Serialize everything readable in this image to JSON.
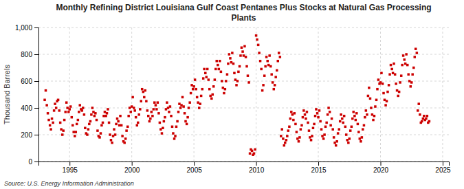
{
  "chart_data": {
    "type": "scatter",
    "title": "Monthly Refining District Louisiana Gulf Coast Pentanes Plus Stocks at Natural Gas Processing\nPlants",
    "ylabel": "Thousand Barrels",
    "source": "Source: U.S. Energy Information Administration",
    "color": "#CC0000",
    "marker": "square",
    "grid": true,
    "xlim": [
      1992.5,
      2025.5
    ],
    "xticks": [
      1995,
      2000,
      2005,
      2010,
      2015,
      2020,
      2025
    ],
    "ylim": [
      0,
      1000
    ],
    "yticks": [
      0,
      200,
      400,
      600,
      800,
      {
        "value": 1000,
        "label": "1,000"
      }
    ],
    "x": [
      1993.0,
      1993.08,
      1993.17,
      1993.25,
      1993.33,
      1993.42,
      1993.5,
      1993.58,
      1993.67,
      1993.75,
      1993.83,
      1993.92,
      1994.0,
      1994.08,
      1994.17,
      1994.25,
      1994.33,
      1994.42,
      1994.5,
      1994.58,
      1994.67,
      1994.75,
      1994.83,
      1994.92,
      1995.0,
      1995.08,
      1995.17,
      1995.25,
      1995.33,
      1995.42,
      1995.5,
      1995.58,
      1995.67,
      1995.75,
      1995.83,
      1995.92,
      1996.0,
      1996.08,
      1996.17,
      1996.25,
      1996.33,
      1996.42,
      1996.5,
      1996.58,
      1996.67,
      1996.75,
      1996.83,
      1996.92,
      1997.0,
      1997.08,
      1997.17,
      1997.25,
      1997.33,
      1997.42,
      1997.5,
      1997.58,
      1997.67,
      1997.75,
      1997.83,
      1997.92,
      1998.0,
      1998.08,
      1998.17,
      1998.25,
      1998.33,
      1998.42,
      1998.5,
      1998.58,
      1998.67,
      1998.75,
      1998.83,
      1998.92,
      1999.0,
      1999.08,
      1999.17,
      1999.25,
      1999.33,
      1999.42,
      1999.5,
      1999.58,
      1999.67,
      1999.75,
      1999.83,
      1999.92,
      2000.0,
      2000.08,
      2000.17,
      2000.25,
      2000.33,
      2000.42,
      2000.5,
      2000.58,
      2000.67,
      2000.75,
      2000.83,
      2000.92,
      2001.0,
      2001.08,
      2001.17,
      2001.25,
      2001.33,
      2001.42,
      2001.5,
      2001.58,
      2001.67,
      2001.75,
      2001.83,
      2001.92,
      2002.0,
      2002.08,
      2002.17,
      2002.25,
      2002.33,
      2002.42,
      2002.5,
      2002.58,
      2002.67,
      2002.75,
      2002.83,
      2002.92,
      2003.0,
      2003.08,
      2003.17,
      2003.25,
      2003.33,
      2003.42,
      2003.5,
      2003.58,
      2003.67,
      2003.75,
      2003.83,
      2003.92,
      2004.0,
      2004.08,
      2004.17,
      2004.25,
      2004.33,
      2004.42,
      2004.5,
      2004.58,
      2004.67,
      2004.75,
      2004.83,
      2004.92,
      2005.0,
      2005.08,
      2005.17,
      2005.25,
      2005.33,
      2005.42,
      2005.5,
      2005.58,
      2005.67,
      2005.75,
      2005.83,
      2005.92,
      2006.0,
      2006.08,
      2006.17,
      2006.25,
      2006.33,
      2006.42,
      2006.5,
      2006.58,
      2006.67,
      2006.75,
      2006.83,
      2006.92,
      2007.0,
      2007.08,
      2007.17,
      2007.25,
      2007.33,
      2007.42,
      2007.5,
      2007.58,
      2007.67,
      2007.75,
      2007.83,
      2007.92,
      2008.0,
      2008.08,
      2008.17,
      2008.25,
      2008.33,
      2008.42,
      2008.5,
      2008.58,
      2008.67,
      2008.75,
      2008.83,
      2008.92,
      2009.0,
      2009.08,
      2009.17,
      2009.25,
      2009.33,
      2009.42,
      2009.5,
      2009.58,
      2009.67,
      2009.75,
      2009.83,
      2009.92,
      2010.0,
      2010.08,
      2010.17,
      2010.25,
      2010.33,
      2010.42,
      2010.5,
      2010.58,
      2010.67,
      2010.75,
      2010.83,
      2010.92,
      2011.0,
      2011.08,
      2011.17,
      2011.25,
      2011.33,
      2011.42,
      2011.5,
      2011.58,
      2011.67,
      2011.75,
      2011.83,
      2011.92,
      2012.0,
      2012.08,
      2012.17,
      2012.25,
      2012.33,
      2012.42,
      2012.5,
      2012.58,
      2012.67,
      2012.75,
      2012.83,
      2012.92,
      2013.0,
      2013.08,
      2013.17,
      2013.25,
      2013.33,
      2013.42,
      2013.5,
      2013.58,
      2013.67,
      2013.75,
      2013.83,
      2013.92,
      2014.0,
      2014.08,
      2014.17,
      2014.25,
      2014.33,
      2014.42,
      2014.5,
      2014.58,
      2014.67,
      2014.75,
      2014.83,
      2014.92,
      2015.0,
      2015.08,
      2015.17,
      2015.25,
      2015.33,
      2015.42,
      2015.5,
      2015.58,
      2015.67,
      2015.75,
      2015.83,
      2015.92,
      2016.0,
      2016.08,
      2016.17,
      2016.25,
      2016.33,
      2016.42,
      2016.5,
      2016.58,
      2016.67,
      2016.75,
      2016.83,
      2016.92,
      2017.0,
      2017.08,
      2017.17,
      2017.25,
      2017.33,
      2017.42,
      2017.5,
      2017.58,
      2017.67,
      2017.75,
      2017.83,
      2017.92,
      2018.0,
      2018.08,
      2018.17,
      2018.25,
      2018.33,
      2018.42,
      2018.5,
      2018.58,
      2018.67,
      2018.75,
      2018.83,
      2018.92,
      2019.0,
      2019.08,
      2019.17,
      2019.25,
      2019.33,
      2019.42,
      2019.5,
      2019.58,
      2019.67,
      2019.75,
      2019.83,
      2019.92,
      2020.0,
      2020.08,
      2020.17,
      2020.25,
      2020.33,
      2020.42,
      2020.5,
      2020.58,
      2020.67,
      2020.75,
      2020.83,
      2020.92,
      2021.0,
      2021.08,
      2021.17,
      2021.25,
      2021.33,
      2021.42,
      2021.5,
      2021.58,
      2021.67,
      2021.75,
      2021.83,
      2021.92,
      2022.0,
      2022.08,
      2022.17,
      2022.25,
      2022.33,
      2022.42,
      2022.5,
      2022.58,
      2022.67,
      2022.75,
      2022.83,
      2022.92,
      2023.0,
      2023.08,
      2023.17,
      2023.25,
      2023.33,
      2023.42,
      2023.5,
      2023.58,
      2023.67,
      2023.75,
      2023.83,
      2023.92
    ],
    "values": [
      460,
      530,
      420,
      360,
      310,
      270,
      240,
      320,
      290,
      380,
      430,
      400,
      450,
      460,
      380,
      290,
      240,
      200,
      230,
      310,
      370,
      440,
      400,
      370,
      390,
      410,
      330,
      270,
      220,
      190,
      220,
      280,
      310,
      370,
      420,
      390,
      380,
      400,
      350,
      250,
      210,
      200,
      240,
      280,
      300,
      350,
      400,
      370,
      340,
      360,
      310,
      230,
      190,
      180,
      210,
      270,
      290,
      340,
      370,
      340,
      360,
      390,
      290,
      200,
      160,
      140,
      190,
      240,
      200,
      280,
      320,
      300,
      270,
      340,
      270,
      190,
      150,
      140,
      170,
      230,
      260,
      340,
      400,
      370,
      410,
      480,
      400,
      380,
      330,
      270,
      290,
      350,
      390,
      450,
      540,
      520,
      480,
      530,
      450,
      380,
      340,
      300,
      320,
      370,
      340,
      390,
      440,
      420,
      390,
      440,
      360,
      290,
      240,
      210,
      250,
      300,
      330,
      390,
      440,
      400,
      370,
      410,
      340,
      260,
      210,
      170,
      190,
      260,
      300,
      370,
      430,
      400,
      420,
      480,
      410,
      360,
      300,
      280,
      330,
      400,
      440,
      510,
      570,
      540,
      560,
      610,
      540,
      480,
      440,
      400,
      430,
      490,
      540,
      620,
      690,
      660,
      630,
      690,
      610,
      540,
      490,
      470,
      500,
      560,
      610,
      690,
      750,
      720,
      690,
      750,
      670,
      600,
      550,
      510,
      540,
      600,
      650,
      730,
      800,
      770,
      740,
      810,
      730,
      660,
      610,
      570,
      600,
      670,
      710,
      790,
      850,
      820,
      790,
      860,
      780,
      710,
      640,
      590,
      60,
      90,
      80,
      50,
      60,
      90,
      940,
      910,
      870,
      810,
      750,
      690,
      530,
      570,
      640,
      710,
      780,
      750,
      720,
      790,
      710,
      650,
      590,
      540,
      570,
      630,
      680,
      750,
      810,
      780,
      190,
      240,
      170,
      120,
      140,
      160,
      190,
      230,
      260,
      320,
      370,
      350,
      310,
      360,
      280,
      220,
      170,
      150,
      180,
      240,
      270,
      330,
      380,
      350,
      320,
      370,
      290,
      230,
      180,
      160,
      190,
      250,
      280,
      340,
      390,
      360,
      330,
      380,
      300,
      240,
      190,
      170,
      200,
      260,
      290,
      350,
      400,
      370,
      270,
      320,
      240,
      180,
      140,
      120,
      150,
      210,
      240,
      300,
      350,
      320,
      290,
      340,
      260,
      200,
      160,
      140,
      170,
      230,
      260,
      320,
      370,
      340,
      310,
      360,
      280,
      220,
      170,
      150,
      180,
      240,
      270,
      330,
      380,
      350,
      490,
      550,
      470,
      400,
      350,
      310,
      340,
      410,
      460,
      540,
      610,
      580,
      590,
      660,
      580,
      510,
      460,
      420,
      450,
      520,
      570,
      650,
      720,
      690,
      660,
      730,
      650,
      580,
      530,
      490,
      520,
      590,
      640,
      720,
      790,
      760,
      730,
      800,
      720,
      650,
      600,
      560,
      590,
      650,
      700,
      780,
      840,
      810,
      380,
      430,
      350,
      290,
      300,
      320,
      340,
      310,
      320,
      340,
      290,
      300
    ]
  }
}
